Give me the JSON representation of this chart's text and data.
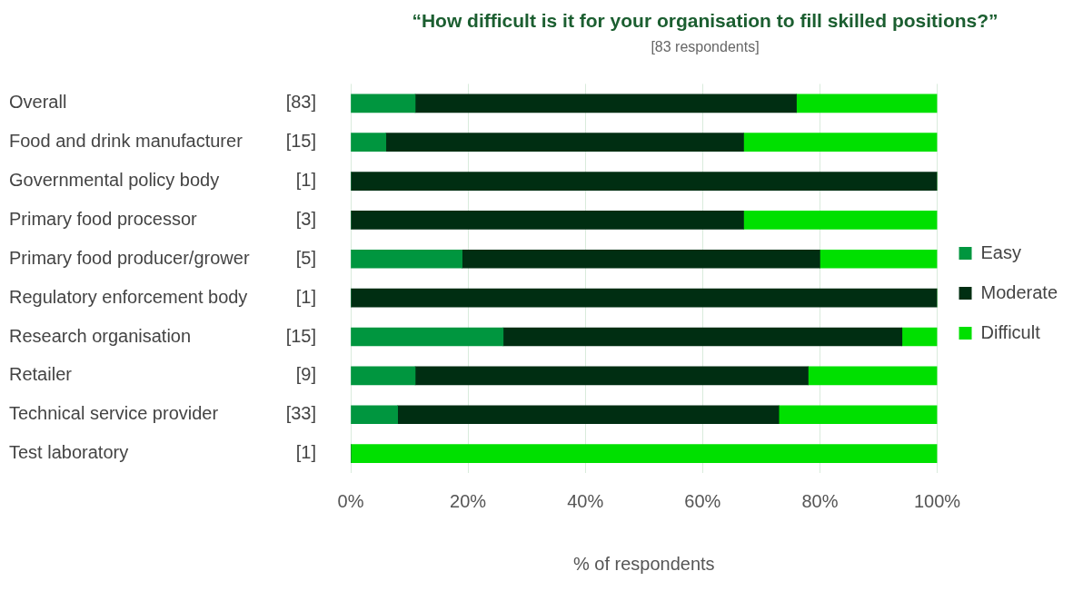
{
  "chart_data": {
    "type": "bar",
    "orientation": "horizontal",
    "stacked": true,
    "title": "“How difficult is it for your organisation to fill skilled positions?”",
    "subtitle": "[83 respondents]",
    "xlabel": "% of respondents",
    "categories": [
      "Overall",
      "Food and drink manufacturer",
      "Governmental policy body",
      "Primary food processor",
      "Primary food producer/grower",
      "Regulatory enforcement body",
      "Research organisation",
      "Retailer",
      "Technical service provider",
      "Test laboratory"
    ],
    "annotations": [
      "[83]",
      "[15]",
      "[1]",
      "[3]",
      "[5]",
      "[1]",
      "[15]",
      "[9]",
      "[33]",
      "[1]"
    ],
    "series": [
      {
        "name": "Easy",
        "color": "#00963f",
        "values": [
          11,
          6,
          0,
          0,
          19,
          0,
          26,
          11,
          8,
          0
        ]
      },
      {
        "name": "Moderate",
        "color": "#002e12",
        "values": [
          65,
          61,
          100,
          67,
          61,
          100,
          68,
          67,
          65,
          0
        ]
      },
      {
        "name": "Difficult",
        "color": "#00e000",
        "values": [
          24,
          33,
          0,
          33,
          20,
          0,
          6,
          22,
          27,
          100
        ]
      }
    ],
    "xlim": [
      0,
      100
    ],
    "xticks": [
      {
        "value": 0,
        "label": "0%"
      },
      {
        "value": 20,
        "label": "20%"
      },
      {
        "value": 40,
        "label": "40%"
      },
      {
        "value": 60,
        "label": "60%"
      },
      {
        "value": 80,
        "label": "80%"
      },
      {
        "value": 100,
        "label": "100%"
      }
    ],
    "grid": "x",
    "legend": "right"
  }
}
